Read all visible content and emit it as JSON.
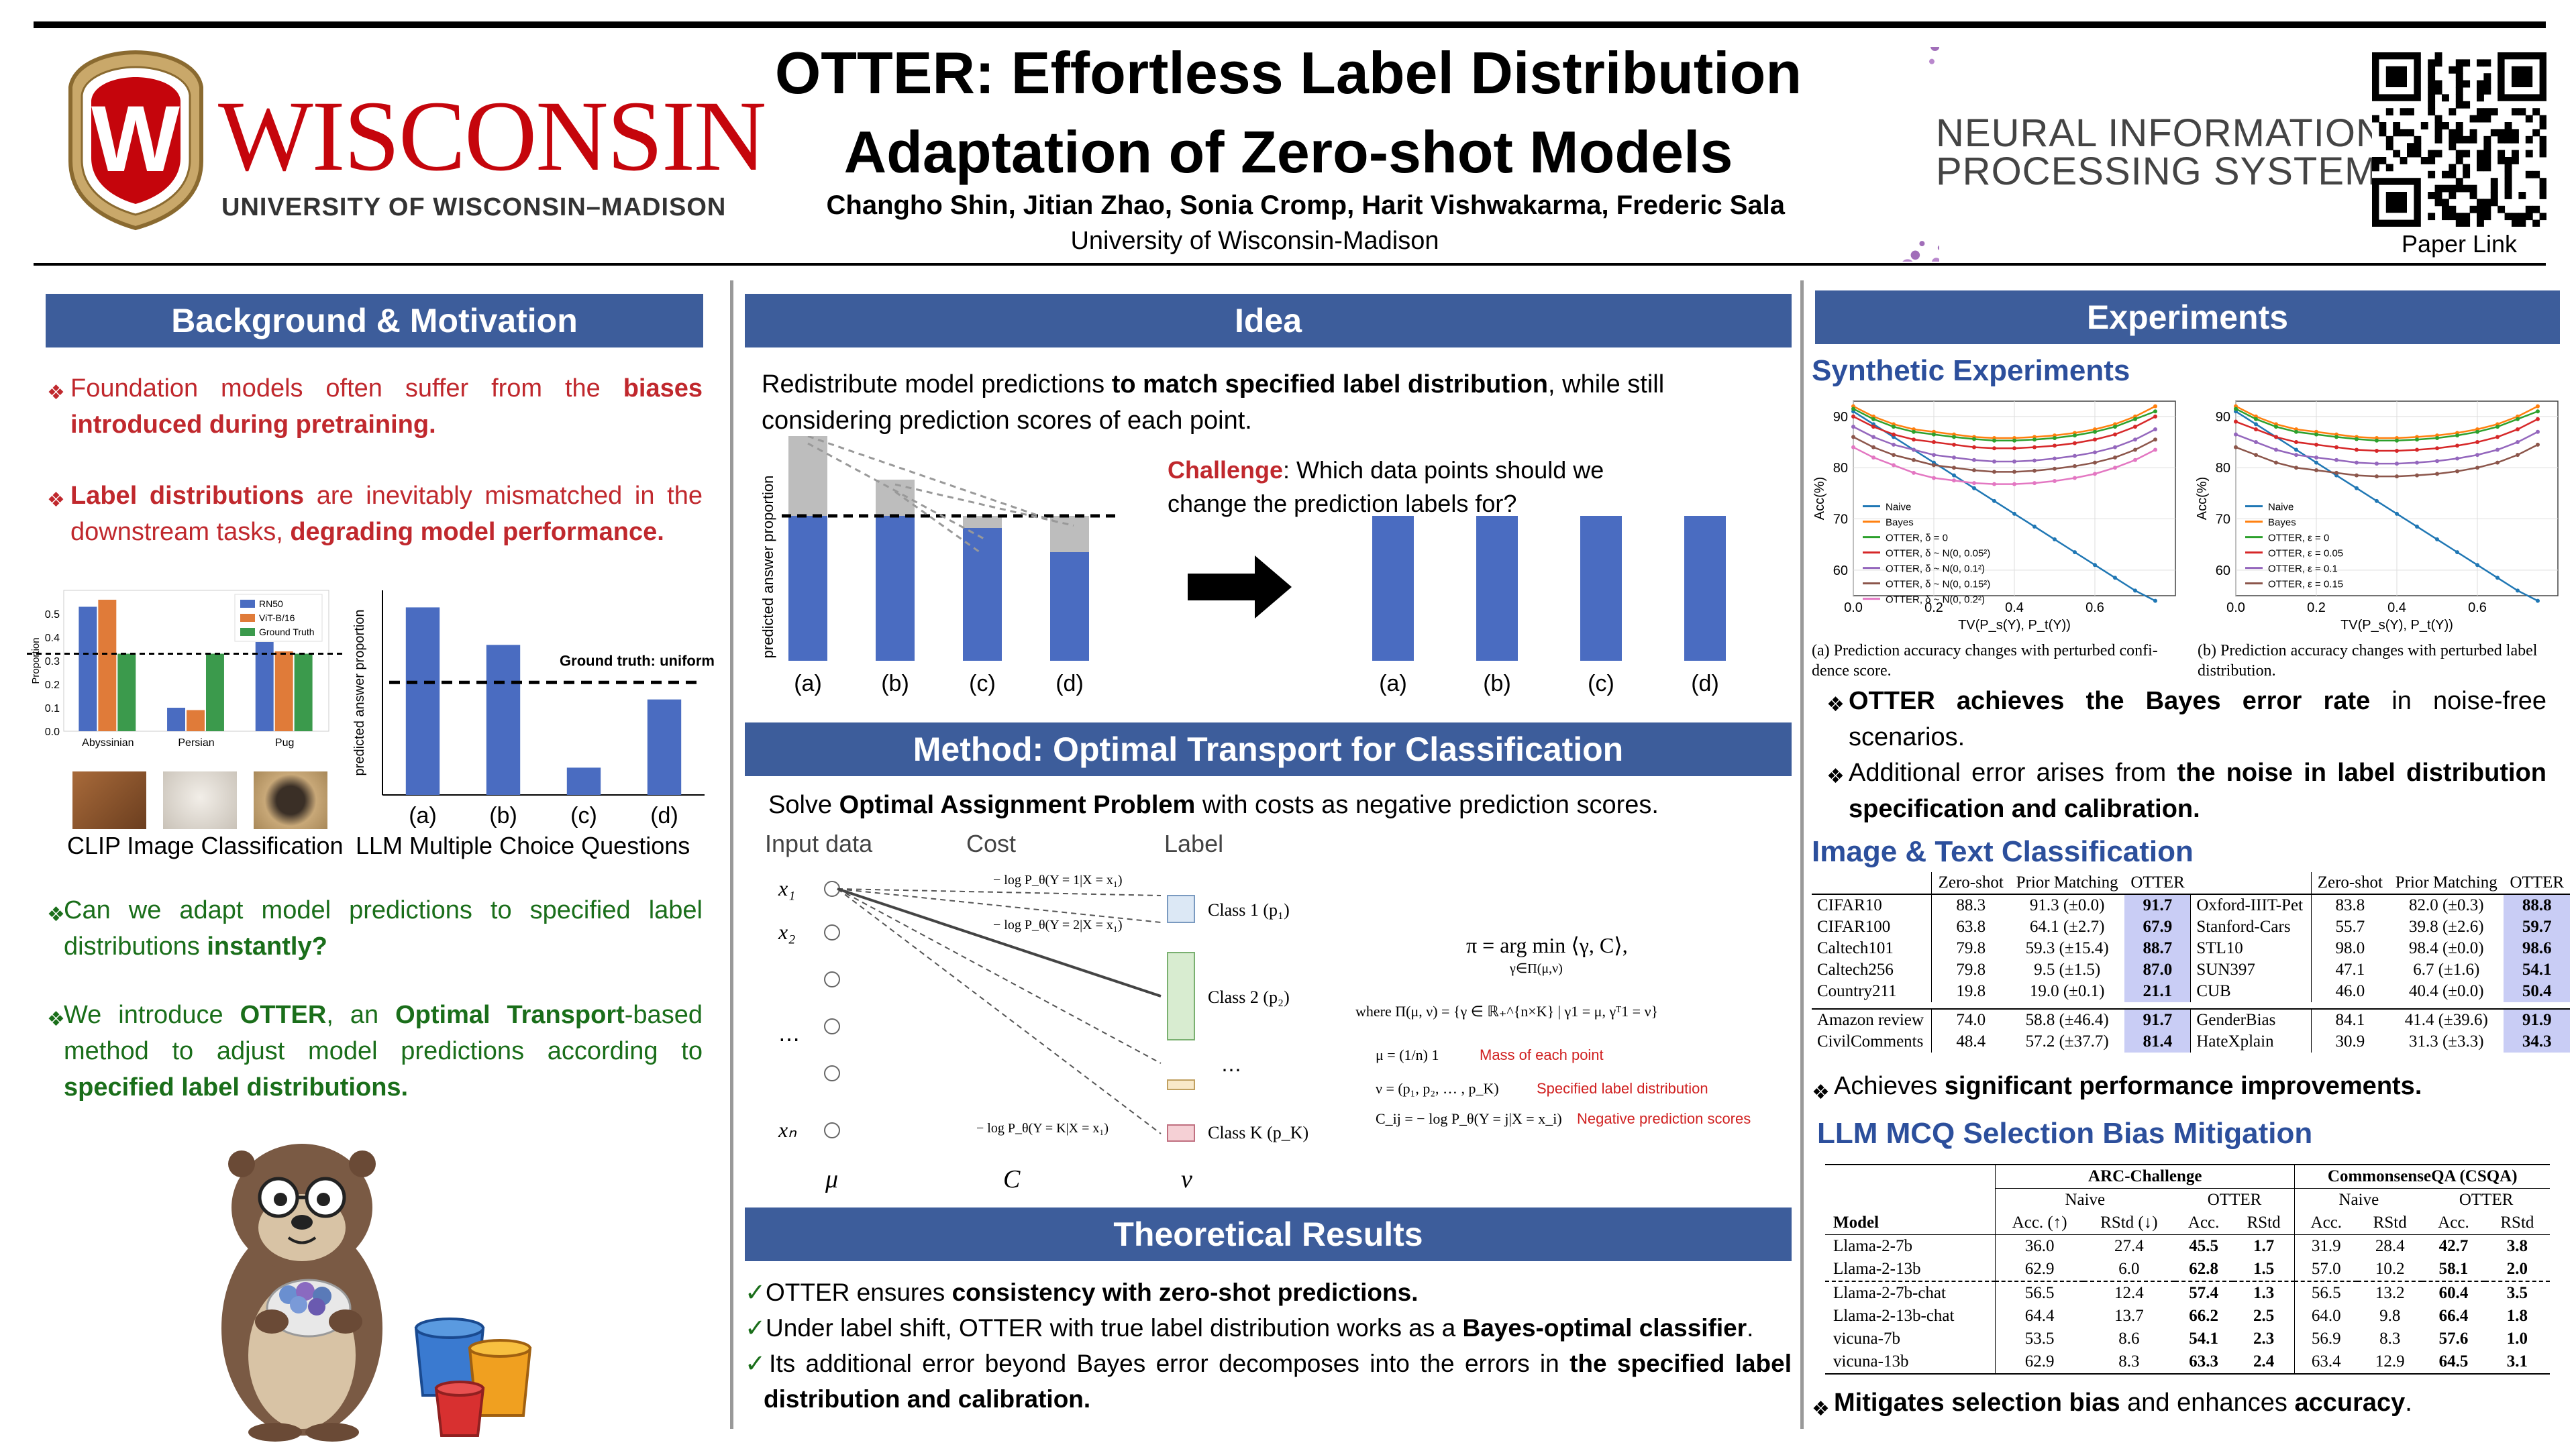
{
  "header": {
    "title_line1": "OTTER: Effortless Label Distribution",
    "title_line2": "Adaptation of Zero-shot Models",
    "authors": "Changho Shin, Jitian Zhao, Sonia Cromp, Harit Vishwakarma, Frederic Sala",
    "affiliation": "University of Wisconsin-Madison",
    "uw_name": "WISCONSIN",
    "uw_sub": "UNIVERSITY OF WISCONSIN–MADISON",
    "uw_crest_letter": "W",
    "neurips_line1": "NEURAL INFORMATION",
    "neurips_line2": "PROCESSING SYSTEMS",
    "qr_label": "Paper Link"
  },
  "colors": {
    "banner": "#3d5d9b",
    "accent_red": "#c0282d",
    "accent_green": "#1a6e1a",
    "bar_blue": "#4a6cc1",
    "highlight": "#c9cdf5"
  },
  "background": {
    "heading": "Background & Motivation",
    "b1_pre": "Foundation models often suffer from the ",
    "b1_bold": "biases introduced during pretraining.",
    "b2_bold1": "Label distributions",
    "b2_mid": " are inevitably mismatched in the downstream tasks, ",
    "b2_bold2": "degrading model performance.",
    "clip_caption": "CLIP Image Classification",
    "llm_caption": "LLM Multiple Choice Questions",
    "ground_truth": "Ground truth: uniform",
    "b3_pre": "Can we adapt model predictions to specified label distributions ",
    "b3_bold": "instantly?",
    "b4_pre": "We introduce ",
    "b4_b1": "OTTER",
    "b4_mid1": ", an ",
    "b4_b2": "Optimal Transport",
    "b4_mid2": "-based method to adjust model predictions according to ",
    "b4_b3": "specified label distributions."
  },
  "clip_chart": {
    "type": "bar",
    "categories": [
      "Abyssinian",
      "Persian",
      "Pug"
    ],
    "series": [
      {
        "name": "RN50",
        "values": [
          0.53,
          0.1,
          0.38
        ],
        "color": "#4a6cc1"
      },
      {
        "name": "ViT-B/16",
        "values": [
          0.56,
          0.09,
          0.34
        ],
        "color": "#e07b39"
      },
      {
        "name": "Ground Truth",
        "values": [
          0.33,
          0.33,
          0.33
        ],
        "color": "#3b9a4c"
      }
    ],
    "yticks": [
      "0.0",
      "0.1",
      "0.2",
      "0.3",
      "0.4",
      "0.5"
    ],
    "ylabel": "Proportion",
    "ylim": [
      0,
      0.6
    ]
  },
  "llm_chart": {
    "type": "bar",
    "categories": [
      "(a)",
      "(b)",
      "(c)",
      "(d)"
    ],
    "values": [
      0.55,
      0.44,
      0.08,
      0.28
    ],
    "ylabel": "predicted answer proportion",
    "ground_truth": 0.33,
    "ylim": [
      0,
      0.6
    ]
  },
  "idea": {
    "heading": "Idea",
    "desc_pre": "Redistribute model predictions ",
    "desc_bold": "to match specified label distribution",
    "desc_post": ", while still considering prediction scores of each point.",
    "challenge_label": "Challenge",
    "challenge_text": ": Which data points should we change the prediction labels for?",
    "ylabel": "predicted answer  proportion",
    "before_values": [
      0.95,
      0.75,
      0.55,
      0.45
    ],
    "target": 0.6,
    "after_values": [
      0.6,
      0.6,
      0.6,
      0.6
    ],
    "categories": [
      "(a)",
      "(b)",
      "(c)",
      "(d)"
    ]
  },
  "method": {
    "heading": "Method: Optimal Transport for Classification",
    "desc_pre": "Solve ",
    "desc_bold": "Optimal Assignment Problem",
    "desc_post": " with costs as negative prediction scores.",
    "col_input": "Input data",
    "col_cost": "Cost",
    "col_label": "Label",
    "x1": "x₁",
    "x2": "x₂",
    "xdots": "⋯",
    "xn": "xₙ",
    "mu": "μ",
    "C": "C",
    "nu": "ν",
    "cost1": "− log P_θ(Y = 1|X = x₁)",
    "cost2": "− log P_θ(Y = 2|X = x₁)",
    "costK": "− log P_θ(Y = K|X = x₁)",
    "class1": "Class 1 (p₁)",
    "class2": "Class 2 (p₂)",
    "classdots": "⋯",
    "classK": "Class K (p_K)",
    "eq_pi": "π = arg min ⟨γ, C⟩,",
    "eq_pi_sub": "γ∈Π(μ,ν)",
    "eq_where": "where Π(μ, ν) = {γ ∈ ℝ₊^{n×K} | γ1 = μ, γᵀ1 = ν}",
    "eq_mu": "μ = (1/n) 1",
    "eq_mu_note": "Mass of each point",
    "eq_nu": "ν = (p₁, p₂, … , p_K)",
    "eq_nu_note": "Specified label distribution",
    "eq_c": "C_ij = − log P_θ(Y = j|X = x_i)",
    "eq_c_note": "Negative prediction scores"
  },
  "theory": {
    "heading": "Theoretical Results",
    "t1_pre": "OTTER ensures ",
    "t1_bold": "consistency with zero-shot predictions.",
    "t2_pre": "Under label shift, OTTER with true label distribution works as a ",
    "t2_bold": "Bayes-optimal classifier",
    "t2_post": ".",
    "t3_pre": "Its additional error beyond Bayes error decomposes into the errors in ",
    "t3_bold": "the specified label distribution and calibration."
  },
  "experiments": {
    "heading": "Experiments",
    "synthetic": "Synthetic Experiments",
    "cap_a": "(a) Prediction accuracy changes with perturbed confi- dence score.",
    "cap_b": "(b) Prediction accuracy changes with perturbed label distribution.",
    "s1_bold1": "OTTER achieves the Bayes error rate",
    "s1_post": " in noise-free scenarios.",
    "s2_pre": "Additional error arises from ",
    "s2_bold": "the noise in label distribution specification and calibration.",
    "img_text": "Image & Text Classification",
    "perf_pre": "Achieves ",
    "perf_bold": "significant performance improvements.",
    "llm_heading": "LLM MCQ Selection Bias Mitigation",
    "final_bold": "Mitigates selection bias",
    "final_mid": " and enhances ",
    "final_bold2": "accuracy",
    "final_post": "."
  },
  "chart_data": [
    {
      "type": "line",
      "xlabel": "TV(P_s(Y), P_t(Y))",
      "ylabel": "Acc(%)",
      "xlim": [
        0,
        0.8
      ],
      "ylim": [
        55,
        93
      ],
      "xticks": [
        "0.0",
        "0.2",
        "0.4",
        "0.6"
      ],
      "yticks": [
        "60",
        "70",
        "80",
        "90"
      ],
      "x": [
        0,
        0.05,
        0.1,
        0.15,
        0.2,
        0.25,
        0.3,
        0.35,
        0.4,
        0.45,
        0.5,
        0.55,
        0.6,
        0.65,
        0.7,
        0.75
      ],
      "series": [
        {
          "name": "Naive",
          "color": "#1f77b4",
          "values": [
            91,
            88.5,
            86,
            83.5,
            81,
            78.5,
            76,
            73.5,
            71,
            68.5,
            66,
            63.5,
            61,
            58.5,
            56,
            54
          ]
        },
        {
          "name": "Bayes",
          "color": "#ff7f0e",
          "values": [
            92,
            90,
            88.5,
            87.5,
            87,
            86.5,
            86,
            85.8,
            85.8,
            86,
            86.3,
            86.8,
            87.5,
            88.5,
            90,
            92
          ]
        },
        {
          "name": "OTTER, δ = 0",
          "color": "#2ca02c",
          "values": [
            91.5,
            89.5,
            88,
            87,
            86.5,
            86,
            85.6,
            85.3,
            85.3,
            85.5,
            85.8,
            86.3,
            87,
            88,
            89.5,
            91
          ]
        },
        {
          "name": "OTTER, δ ~ N(0, 0.05²)",
          "color": "#d62728",
          "values": [
            90,
            88,
            86.5,
            85.5,
            85,
            84.5,
            84,
            83.8,
            83.8,
            84,
            84.3,
            84.8,
            85.5,
            86.5,
            88,
            90
          ]
        },
        {
          "name": "OTTER, δ ~ N(0, 0.1²)",
          "color": "#9467bd",
          "values": [
            88,
            86,
            84.5,
            83.5,
            82.5,
            82,
            81.5,
            81.2,
            81.2,
            81.4,
            81.8,
            82.3,
            83,
            84,
            85.5,
            87.5
          ]
        },
        {
          "name": "OTTER, δ ~ N(0, 0.15²)",
          "color": "#8c564b",
          "values": [
            86,
            84,
            82.5,
            81.5,
            80.5,
            80,
            79.5,
            79.2,
            79.2,
            79.4,
            79.8,
            80.3,
            81,
            82,
            83.5,
            85.5
          ]
        },
        {
          "name": "OTTER, δ ~ N(0, 0.2²)",
          "color": "#e377c2",
          "values": [
            84,
            82,
            80.5,
            79,
            78,
            77.5,
            77,
            76.8,
            76.8,
            77,
            77.4,
            78,
            78.8,
            80,
            81.5,
            83.5
          ]
        }
      ]
    },
    {
      "type": "line",
      "xlabel": "TV(P_s(Y), P_t(Y))",
      "ylabel": "Acc(%)",
      "xlim": [
        0,
        0.8
      ],
      "ylim": [
        55,
        93
      ],
      "xticks": [
        "0.0",
        "0.2",
        "0.4",
        "0.6"
      ],
      "yticks": [
        "60",
        "70",
        "80",
        "90"
      ],
      "x": [
        0,
        0.05,
        0.1,
        0.15,
        0.2,
        0.25,
        0.3,
        0.35,
        0.4,
        0.45,
        0.5,
        0.55,
        0.6,
        0.65,
        0.7,
        0.75
      ],
      "series": [
        {
          "name": "Naive",
          "color": "#1f77b4",
          "values": [
            91,
            88.5,
            86,
            83.5,
            81,
            78.5,
            76,
            73.5,
            71,
            68.5,
            66,
            63.5,
            61,
            58.5,
            56,
            54
          ]
        },
        {
          "name": "Bayes",
          "color": "#ff7f0e",
          "values": [
            92,
            90,
            88.5,
            87.5,
            87,
            86.5,
            86,
            85.8,
            85.8,
            86,
            86.3,
            86.8,
            87.5,
            88.5,
            90,
            92
          ]
        },
        {
          "name": "OTTER, ε = 0",
          "color": "#2ca02c",
          "values": [
            91.5,
            89.5,
            88,
            87,
            86.5,
            86,
            85.6,
            85.3,
            85.3,
            85.5,
            85.8,
            86.3,
            87,
            88,
            89.5,
            91
          ]
        },
        {
          "name": "OTTER, ε = 0.05",
          "color": "#d62728",
          "values": [
            89,
            87.5,
            86,
            85,
            84.5,
            84,
            83.5,
            83.3,
            83.3,
            83.5,
            83.8,
            84.3,
            85,
            86,
            87.5,
            89.5
          ]
        },
        {
          "name": "OTTER, ε = 0.1",
          "color": "#9467bd",
          "values": [
            86.5,
            85,
            83.5,
            82.5,
            82,
            81.5,
            81,
            80.8,
            80.8,
            81,
            81.3,
            81.8,
            82.5,
            83.5,
            85,
            87
          ]
        },
        {
          "name": "OTTER, ε = 0.15",
          "color": "#8c564b",
          "values": [
            84,
            82.5,
            81,
            80,
            79.5,
            79,
            78.5,
            78.3,
            78.3,
            78.5,
            78.8,
            79.3,
            80,
            81,
            82.5,
            84.5
          ]
        }
      ]
    }
  ],
  "img_table": {
    "headers": [
      "",
      "Zero-shot",
      "Prior Matching",
      "OTTER",
      "",
      "Zero-shot",
      "Prior Matching",
      "OTTER"
    ],
    "rows": [
      [
        "CIFAR10",
        "88.3",
        "91.3 (±0.0)",
        "91.7",
        "Oxford-IIIT-Pet",
        "83.8",
        "82.0 (±0.3)",
        "88.8"
      ],
      [
        "CIFAR100",
        "63.8",
        "64.1 (±2.7)",
        "67.9",
        "Stanford-Cars",
        "55.7",
        "39.8 (±2.6)",
        "59.7"
      ],
      [
        "Caltech101",
        "79.8",
        "59.3 (±15.4)",
        "88.7",
        "STL10",
        "98.0",
        "98.4 (±0.0)",
        "98.6"
      ],
      [
        "Caltech256",
        "79.8",
        "9.5 (±1.5)",
        "87.0",
        "SUN397",
        "47.1",
        "6.7 (±1.6)",
        "54.1"
      ],
      [
        "Country211",
        "19.8",
        "19.0 (±0.1)",
        "21.1",
        "CUB",
        "46.0",
        "40.4 (±0.0)",
        "50.4"
      ]
    ],
    "rows2": [
      [
        "Amazon review",
        "74.0",
        "58.8 (±46.4)",
        "91.7",
        "GenderBias",
        "84.1",
        "41.4 (±39.6)",
        "91.9"
      ],
      [
        "CivilComments",
        "48.4",
        "57.2 (±37.7)",
        "81.4",
        "HateXplain",
        "30.9",
        "31.3 (±3.3)",
        "34.3"
      ]
    ]
  },
  "llm_table": {
    "group1": "ARC-Challenge",
    "group2": "CommonsenseQA (CSQA)",
    "naive": "Naive",
    "otter": "OTTER",
    "model": "Model",
    "acc_up": "Acc. (↑)",
    "rstd_down": "RStd (↓)",
    "acc": "Acc.",
    "rstd": "RStd",
    "rows": [
      [
        "Llama-2-7b",
        "36.0",
        "27.4",
        "45.5",
        "1.7",
        "31.9",
        "28.4",
        "42.7",
        "3.8"
      ],
      [
        "Llama-2-13b",
        "62.9",
        "6.0",
        "62.8",
        "1.5",
        "57.0",
        "10.2",
        "58.1",
        "2.0"
      ],
      [
        "Llama-2-7b-chat",
        "56.5",
        "12.4",
        "57.4",
        "1.3",
        "56.5",
        "13.2",
        "60.4",
        "3.5"
      ],
      [
        "Llama-2-13b-chat",
        "64.4",
        "13.7",
        "66.2",
        "2.5",
        "64.0",
        "9.8",
        "66.4",
        "1.8"
      ],
      [
        "vicuna-7b",
        "53.5",
        "8.6",
        "54.1",
        "2.3",
        "56.9",
        "8.3",
        "57.6",
        "1.0"
      ],
      [
        "vicuna-13b",
        "62.9",
        "8.3",
        "63.3",
        "2.4",
        "63.4",
        "12.9",
        "64.5",
        "3.1"
      ]
    ]
  }
}
